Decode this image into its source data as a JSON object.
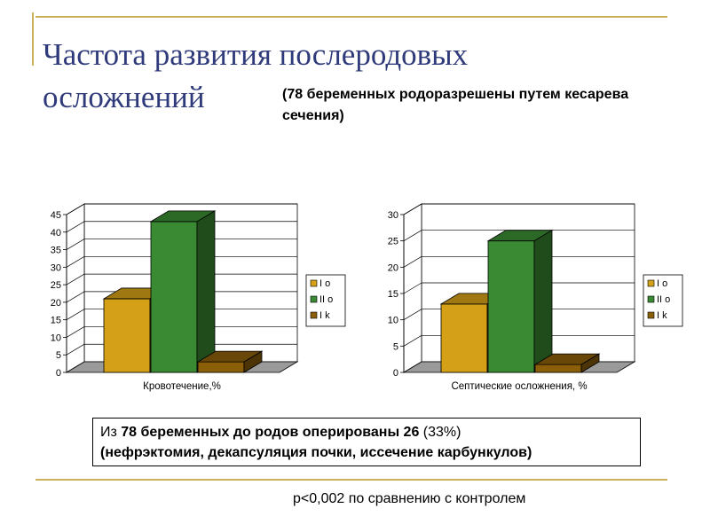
{
  "slide": {
    "title": "Частота развития послеродовых осложнений",
    "subtitle": "(78 беременных родоразрешены путем кесарева сечения)",
    "info_parts": [
      "Из ",
      "78 беременных до родов оперированы 26",
      " (33%) ",
      "(нефрэктомия, декапсуляция почки, иссечение карбункулов)"
    ],
    "footnote": "р<0,002 по сравнению  с контролем"
  },
  "colors": {
    "title": "#2f3a7a",
    "frame": "#c9b25a",
    "series": [
      "#d4a017",
      "#3a8a33",
      "#8b5e0a"
    ]
  },
  "chart_data": [
    {
      "type": "bar",
      "categories": [
        "Кровотечение,%"
      ],
      "series": [
        {
          "name": "I о",
          "values": [
            21
          ]
        },
        {
          "name": "II о",
          "values": [
            43
          ]
        },
        {
          "name": "I k",
          "values": [
            3
          ]
        }
      ],
      "ylim": [
        0,
        45
      ],
      "yticks": [
        0,
        5,
        10,
        15,
        20,
        25,
        30,
        35,
        40,
        45
      ],
      "legend": "right",
      "grid": true
    },
    {
      "type": "bar",
      "categories": [
        "Септические осложнения, %"
      ],
      "series": [
        {
          "name": "I о",
          "values": [
            13
          ]
        },
        {
          "name": "II о",
          "values": [
            25
          ]
        },
        {
          "name": "I k",
          "values": [
            1.5
          ]
        }
      ],
      "ylim": [
        0,
        30
      ],
      "yticks": [
        0,
        5,
        10,
        15,
        20,
        25,
        30
      ],
      "legend": "right",
      "grid": true
    }
  ]
}
